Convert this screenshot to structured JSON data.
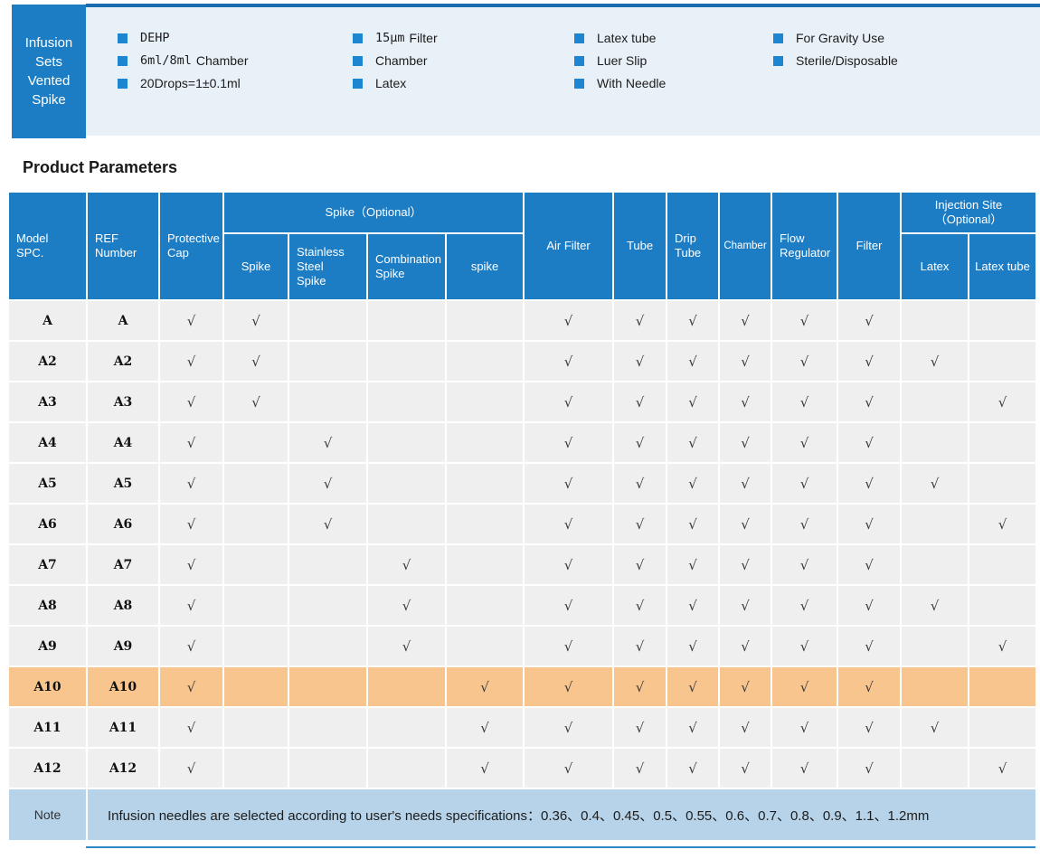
{
  "banner": {
    "product_title": "Infusion\nSets\nVented\nSpike",
    "feature_columns": [
      [
        {
          "mono": "DEHP",
          "text": ""
        },
        {
          "mono": "6ml/8ml",
          "text": "Chamber"
        },
        {
          "mono": "",
          "text": "20Drops=1±0.1ml"
        }
      ],
      [
        {
          "mono": "15μm",
          "text": "Filter"
        },
        {
          "mono": "",
          "text": "Chamber"
        },
        {
          "mono": "",
          "text": "Latex"
        }
      ],
      [
        {
          "mono": "",
          "text": "Latex tube"
        },
        {
          "mono": "",
          "text": "Luer Slip"
        },
        {
          "mono": "",
          "text": "With Needle"
        }
      ],
      [
        {
          "mono": "",
          "text": "For Gravity Use"
        },
        {
          "mono": "",
          "text": "Sterile/Disposable"
        }
      ]
    ]
  },
  "section_title": "Product Parameters",
  "table": {
    "check_glyph": "√",
    "header": {
      "model": "Model\nSPC.",
      "ref": "REF\nNumber",
      "protective_cap": "Protective\nCap",
      "spike_group": "Spike（Optional）",
      "spike": "Spike",
      "stainless_steel_spike": "Stainless\nSteel\nSpike",
      "combination_spike": "Combination\nSpike",
      "spike_lower": "spike",
      "air_filter": "Air Filter",
      "tube": "Tube",
      "drip_tube": "Drip\nTube",
      "chamber": "Chamber",
      "flow_regulator": "Flow\nRegulator",
      "filter": "Filter",
      "injection_group": "Injection Site\n（Optional）",
      "latex": "Latex",
      "latex_tube": "Latex tube"
    },
    "check_columns": [
      "protective_cap",
      "spike",
      "stainless_steel_spike",
      "combination_spike",
      "spike_lower",
      "air_filter",
      "tube",
      "drip_tube",
      "chamber",
      "flow_regulator",
      "filter",
      "latex",
      "latex_tube"
    ],
    "rows": [
      {
        "model": "A",
        "ref": "A",
        "highlight": false,
        "checks": [
          1,
          1,
          0,
          0,
          0,
          1,
          1,
          1,
          1,
          1,
          1,
          0,
          0
        ]
      },
      {
        "model": "A2",
        "ref": "A2",
        "highlight": false,
        "checks": [
          1,
          1,
          0,
          0,
          0,
          1,
          1,
          1,
          1,
          1,
          1,
          1,
          0
        ]
      },
      {
        "model": "A3",
        "ref": "A3",
        "highlight": false,
        "checks": [
          1,
          1,
          0,
          0,
          0,
          1,
          1,
          1,
          1,
          1,
          1,
          0,
          1
        ]
      },
      {
        "model": "A4",
        "ref": "A4",
        "highlight": false,
        "checks": [
          1,
          0,
          1,
          0,
          0,
          1,
          1,
          1,
          1,
          1,
          1,
          0,
          0
        ]
      },
      {
        "model": "A5",
        "ref": "A5",
        "highlight": false,
        "checks": [
          1,
          0,
          1,
          0,
          0,
          1,
          1,
          1,
          1,
          1,
          1,
          1,
          0
        ]
      },
      {
        "model": "A6",
        "ref": "A6",
        "highlight": false,
        "checks": [
          1,
          0,
          1,
          0,
          0,
          1,
          1,
          1,
          1,
          1,
          1,
          0,
          1
        ]
      },
      {
        "model": "A7",
        "ref": "A7",
        "highlight": false,
        "checks": [
          1,
          0,
          0,
          1,
          0,
          1,
          1,
          1,
          1,
          1,
          1,
          0,
          0
        ]
      },
      {
        "model": "A8",
        "ref": "A8",
        "highlight": false,
        "checks": [
          1,
          0,
          0,
          1,
          0,
          1,
          1,
          1,
          1,
          1,
          1,
          1,
          0
        ]
      },
      {
        "model": "A9",
        "ref": "A9",
        "highlight": false,
        "checks": [
          1,
          0,
          0,
          1,
          0,
          1,
          1,
          1,
          1,
          1,
          1,
          0,
          1
        ]
      },
      {
        "model": "A10",
        "ref": "A10",
        "highlight": true,
        "checks": [
          1,
          0,
          0,
          0,
          1,
          1,
          1,
          1,
          1,
          1,
          1,
          0,
          0
        ]
      },
      {
        "model": "A11",
        "ref": "A11",
        "highlight": false,
        "checks": [
          1,
          0,
          0,
          0,
          1,
          1,
          1,
          1,
          1,
          1,
          1,
          1,
          0
        ]
      },
      {
        "model": "A12",
        "ref": "A12",
        "highlight": false,
        "checks": [
          1,
          0,
          0,
          0,
          1,
          1,
          1,
          1,
          1,
          1,
          1,
          0,
          1
        ]
      }
    ],
    "note_label": "Note",
    "note_text": "Infusion needles are selected according to user's needs specifications：0.36、0.4、0.45、0.5、0.55、0.6、0.7、0.8、0.9、1.1、1.2mm"
  },
  "colors": {
    "accent": "#1d7dc4",
    "accent_dark": "#1a6cb0",
    "bullet": "#1d86d0",
    "strip_bg": "#e8f0f8",
    "cell_bg": "#efefef",
    "highlight": "#f9c58e",
    "note_bg": "#b7d3e9"
  }
}
